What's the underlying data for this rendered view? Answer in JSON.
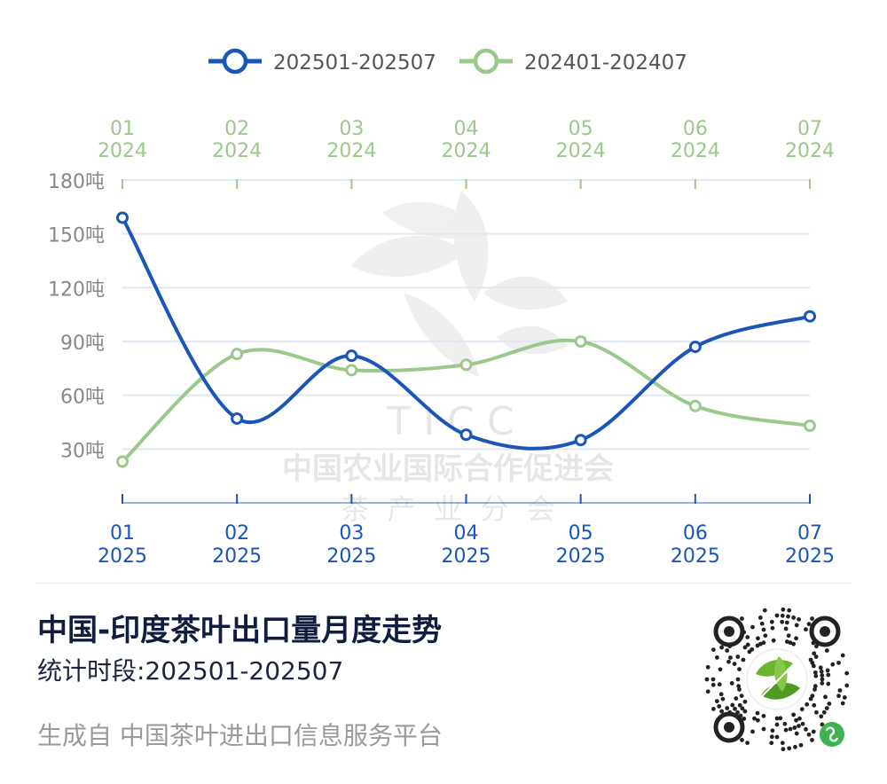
{
  "chart_data": {
    "type": "line",
    "categories": [
      "01",
      "02",
      "03",
      "04",
      "05",
      "06",
      "07"
    ],
    "x_bottom_years": [
      "2025",
      "2025",
      "2025",
      "2025",
      "2025",
      "2025",
      "2025"
    ],
    "x_top_years": [
      "2024",
      "2024",
      "2024",
      "2024",
      "2024",
      "2024",
      "2024"
    ],
    "y_ticks": [
      "180吨",
      "150吨",
      "120吨",
      "90吨",
      "60吨",
      "30吨"
    ],
    "ylim": [
      0,
      180
    ],
    "grid": true,
    "legend_position": "top",
    "series": [
      {
        "name": "202501-202507",
        "color": "#1a55b8",
        "values": [
          159,
          47,
          82,
          38,
          35,
          87,
          104
        ]
      },
      {
        "name": "202401-202407",
        "color": "#9bc98b",
        "values": [
          23,
          83,
          74,
          77,
          90,
          54,
          43
        ]
      }
    ]
  },
  "watermark": {
    "line1": "T I C C",
    "line2": "中国农业国际合作促进会",
    "line3": "茶  产  业  分  会"
  },
  "footer": {
    "title": "中国-印度茶叶出口量月度走势",
    "subtitle": "统计时段:202501-202507",
    "source": "生成自 中国茶叶进出口信息服务平台"
  },
  "colors": {
    "axis_bottom": "#1a55b8",
    "axis_top": "#9bc98b",
    "grid": "#e3e6f3",
    "tick_text": "#888888"
  },
  "icons": {
    "qr": "qr-code-icon",
    "mini_program": "mini-program-icon",
    "logo": "tea-leaf-logo-icon"
  }
}
